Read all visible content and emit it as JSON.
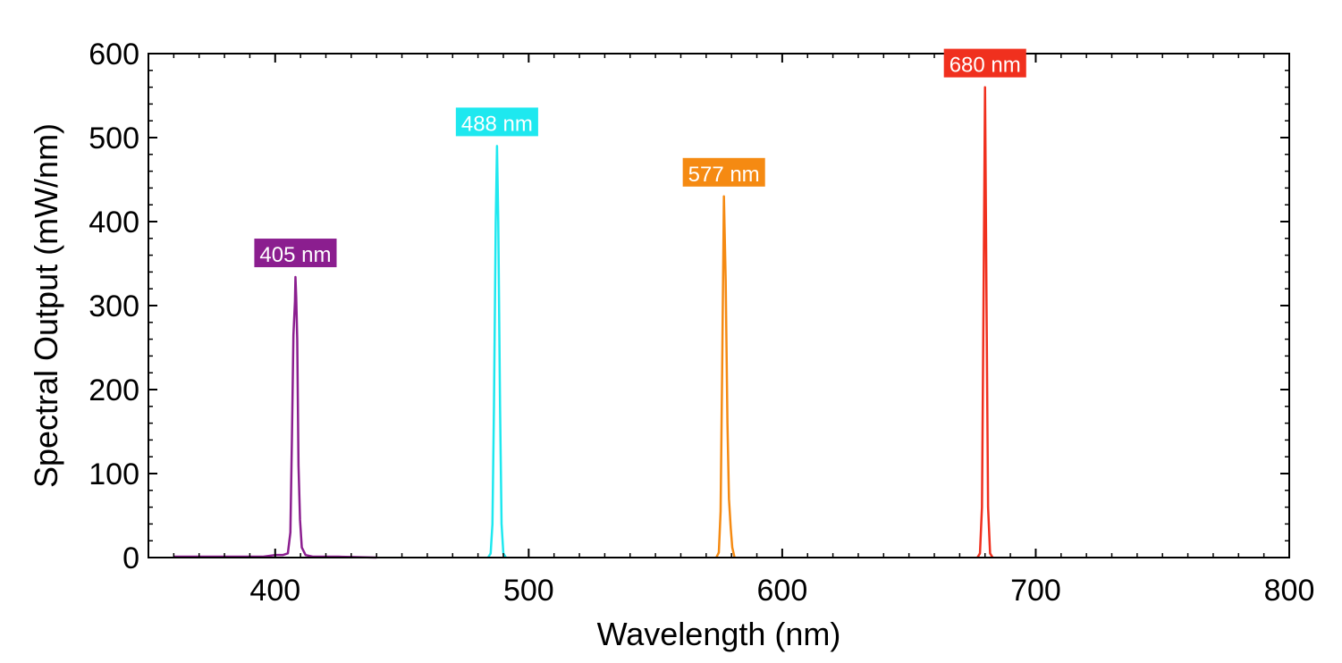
{
  "chart_data": {
    "type": "line",
    "xlabel": "Wavelength (nm)",
    "ylabel": "Spectral Output (mW/nm)",
    "xlim": [
      350,
      800
    ],
    "ylim": [
      0,
      600
    ],
    "x_ticks": [
      400,
      500,
      600,
      700,
      800
    ],
    "x_tick_labels": [
      "400",
      "500",
      "600",
      "700",
      "800"
    ],
    "y_ticks": [
      0,
      100,
      200,
      300,
      400,
      500,
      600
    ],
    "y_tick_labels": [
      "0",
      "100",
      "200",
      "300",
      "400",
      "500",
      "600"
    ],
    "x_minor_step": 10,
    "y_minor_step": 20,
    "grid": false,
    "legend": "none",
    "series": [
      {
        "label": "405 nm",
        "color": "#8B1E8F",
        "peak_x": 408,
        "peak_y": 334,
        "x": [
          360,
          380,
          395,
          400,
          403,
          405,
          406,
          406.6,
          407.2,
          407.8,
          408,
          408.3,
          408.7,
          409.2,
          409.8,
          410.5,
          412,
          415,
          425,
          440
        ],
        "y": [
          1,
          1,
          1,
          3,
          3,
          5,
          30,
          140,
          265,
          305,
          334,
          310,
          260,
          110,
          45,
          12,
          3,
          1,
          1,
          0
        ]
      },
      {
        "label": "488 nm",
        "color": "#1EE8EF",
        "peak_x": 487.5,
        "peak_y": 490,
        "x": [
          484,
          485,
          485.7,
          486.3,
          487,
          487.5,
          488,
          488.7,
          489.3,
          490,
          491
        ],
        "y": [
          0,
          5,
          40,
          180,
          400,
          490,
          400,
          180,
          40,
          5,
          0
        ]
      },
      {
        "label": "577 nm",
        "color": "#F58A12",
        "peak_x": 577,
        "peak_y": 430,
        "x": [
          574,
          575,
          575.7,
          576.3,
          577,
          577.7,
          578.4,
          579,
          579.7,
          580.3,
          581.2
        ],
        "y": [
          0,
          6,
          55,
          220,
          430,
          330,
          160,
          70,
          35,
          12,
          0
        ]
      },
      {
        "label": "680 nm",
        "color": "#F0301E",
        "peak_x": 680,
        "peak_y": 560,
        "x": [
          677,
          678,
          678.8,
          679.4,
          680,
          680.6,
          681.2,
          682,
          683
        ],
        "y": [
          0,
          5,
          60,
          300,
          560,
          300,
          60,
          5,
          0
        ]
      }
    ]
  }
}
